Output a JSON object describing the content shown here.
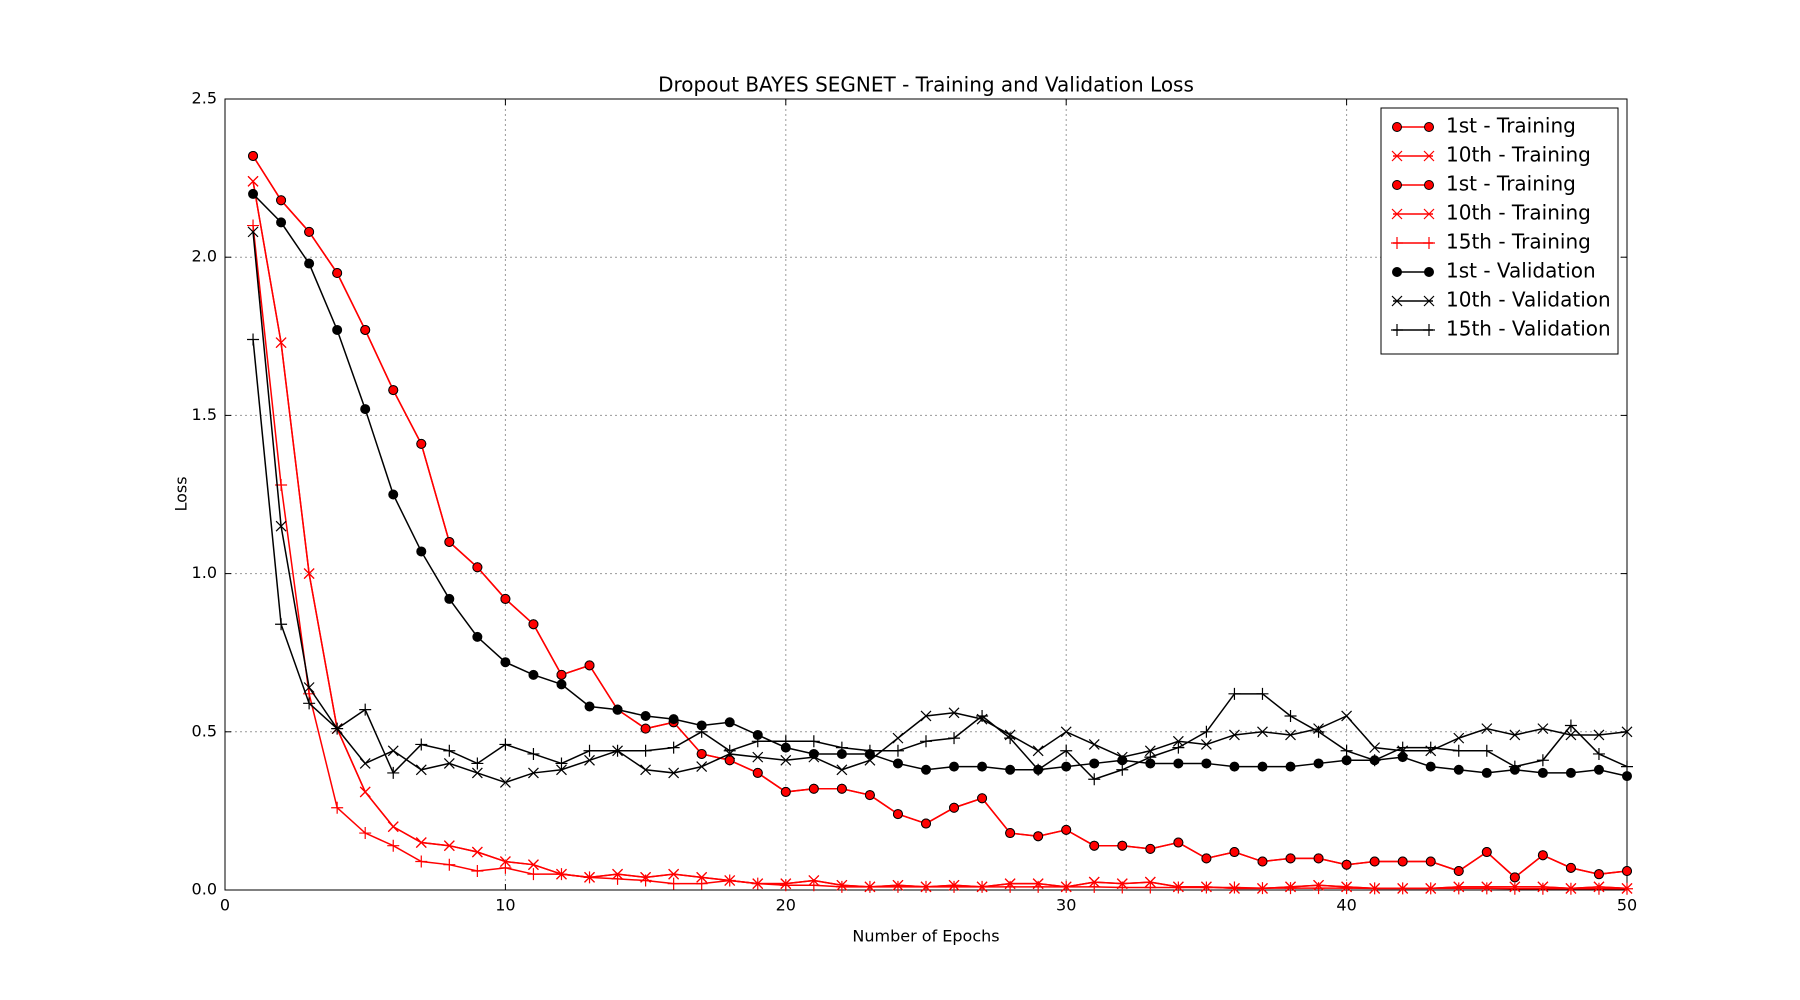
{
  "chart_data": {
    "type": "line",
    "title": "Dropout BAYES SEGNET - Training and Validation Loss",
    "x_label": "Number of Epochs",
    "y_label": "Loss",
    "x": [
      1,
      2,
      3,
      4,
      5,
      6,
      7,
      8,
      9,
      10,
      11,
      12,
      13,
      14,
      15,
      16,
      17,
      18,
      19,
      20,
      21,
      22,
      23,
      24,
      25,
      26,
      27,
      28,
      29,
      30,
      31,
      32,
      33,
      34,
      35,
      36,
      37,
      38,
      39,
      40,
      41,
      42,
      43,
      44,
      45,
      46,
      47,
      48,
      49,
      50
    ],
    "xlim": [
      0,
      50
    ],
    "xticks": [
      0,
      10,
      20,
      30,
      40,
      50
    ],
    "ylim": [
      0,
      2.5
    ],
    "yticks": [
      {
        "value": 0,
        "label": "0.0"
      },
      {
        "value": 0.5,
        "label": "0.5"
      },
      {
        "value": 1,
        "label": "1.0"
      },
      {
        "value": 1.5,
        "label": "1.5"
      },
      {
        "value": 2,
        "label": "2.0"
      },
      {
        "value": 2.5,
        "label": "2.5"
      }
    ],
    "grid": true,
    "legend": "upper right",
    "series": [
      {
        "name": "1st - Training",
        "color": "#ff0000",
        "marker": "circle",
        "values": [
          2.32,
          2.18,
          2.08,
          1.95,
          1.77,
          1.58,
          1.41,
          1.1,
          1.02,
          0.92,
          0.84,
          0.68,
          0.71,
          0.57,
          0.51,
          0.53,
          0.43,
          0.41,
          0.37,
          0.31,
          0.32,
          0.32,
          0.3,
          0.24,
          0.21,
          0.26,
          0.29,
          0.18,
          0.17,
          0.19,
          0.14,
          0.14,
          0.13,
          0.15,
          0.1,
          0.12,
          0.09,
          0.1,
          0.1,
          0.08,
          0.09,
          0.09,
          0.09,
          0.06,
          0.12,
          0.04,
          0.11,
          0.07,
          0.05,
          0.06
        ]
      },
      {
        "name": "10th - Training",
        "color": "#ff0000",
        "marker": "x",
        "values": [
          2.24,
          1.73,
          1.0,
          0.51,
          0.31,
          0.2,
          0.15,
          0.14,
          0.12,
          0.09,
          0.08,
          0.05,
          0.04,
          0.05,
          0.04,
          0.05,
          0.04,
          0.03,
          0.02,
          0.02,
          0.03,
          0.015,
          0.01,
          0.015,
          0.01,
          0.015,
          0.01,
          0.02,
          0.02,
          0.01,
          0.025,
          0.02,
          0.025,
          0.01,
          0.01,
          0.005,
          0.005,
          0.01,
          0.015,
          0.01,
          0.005,
          0.005,
          0.005,
          0.01,
          0.01,
          0.01,
          0.01,
          0.005,
          0.01,
          0.005
        ]
      },
      {
        "name": "1st - Training",
        "color": "#ff0000",
        "marker": "circle",
        "values": [
          2.32,
          2.18,
          2.08,
          1.95,
          1.77,
          1.58,
          1.41,
          1.1,
          1.02,
          0.92,
          0.84,
          0.68,
          0.71,
          0.57,
          0.51,
          0.53,
          0.43,
          0.41,
          0.37,
          0.31,
          0.32,
          0.32,
          0.3,
          0.24,
          0.21,
          0.26,
          0.29,
          0.18,
          0.17,
          0.19,
          0.14,
          0.14,
          0.13,
          0.15,
          0.1,
          0.12,
          0.09,
          0.1,
          0.1,
          0.08,
          0.09,
          0.09,
          0.09,
          0.06,
          0.12,
          0.04,
          0.11,
          0.07,
          0.05,
          0.06
        ]
      },
      {
        "name": "10th - Training",
        "color": "#ff0000",
        "marker": "x",
        "values": [
          2.24,
          1.73,
          1.0,
          0.51,
          0.31,
          0.2,
          0.15,
          0.14,
          0.12,
          0.09,
          0.08,
          0.05,
          0.04,
          0.05,
          0.04,
          0.05,
          0.04,
          0.03,
          0.02,
          0.02,
          0.03,
          0.015,
          0.01,
          0.015,
          0.01,
          0.015,
          0.01,
          0.02,
          0.02,
          0.01,
          0.025,
          0.02,
          0.025,
          0.01,
          0.01,
          0.005,
          0.005,
          0.01,
          0.015,
          0.01,
          0.005,
          0.005,
          0.005,
          0.01,
          0.01,
          0.01,
          0.01,
          0.005,
          0.01,
          0.005
        ]
      },
      {
        "name": "15th - Training",
        "color": "#ff0000",
        "marker": "plus",
        "values": [
          2.1,
          1.28,
          0.62,
          0.26,
          0.18,
          0.14,
          0.09,
          0.08,
          0.06,
          0.07,
          0.05,
          0.05,
          0.04,
          0.035,
          0.03,
          0.02,
          0.02,
          0.03,
          0.02,
          0.015,
          0.015,
          0.01,
          0.01,
          0.01,
          0.01,
          0.01,
          0.01,
          0.01,
          0.01,
          0.01,
          0.01,
          0.008,
          0.008,
          0.008,
          0.008,
          0.008,
          0.006,
          0.006,
          0.006,
          0.006,
          0.005,
          0.005,
          0.005,
          0.005,
          0.005,
          0.004,
          0.004,
          0.004,
          0.004,
          0.004
        ]
      },
      {
        "name": "1st - Validation",
        "color": "#000000",
        "marker": "circle",
        "values": [
          2.2,
          2.11,
          1.98,
          1.77,
          1.52,
          1.25,
          1.07,
          0.92,
          0.8,
          0.72,
          0.68,
          0.65,
          0.58,
          0.57,
          0.55,
          0.54,
          0.52,
          0.53,
          0.49,
          0.45,
          0.43,
          0.43,
          0.43,
          0.4,
          0.38,
          0.39,
          0.39,
          0.38,
          0.38,
          0.39,
          0.4,
          0.41,
          0.4,
          0.4,
          0.4,
          0.39,
          0.39,
          0.39,
          0.4,
          0.41,
          0.41,
          0.42,
          0.39,
          0.38,
          0.37,
          0.38,
          0.37,
          0.37,
          0.38,
          0.36
        ]
      },
      {
        "name": "10th - Validation",
        "color": "#000000",
        "marker": "x",
        "values": [
          2.08,
          1.15,
          0.64,
          0.51,
          0.4,
          0.44,
          0.38,
          0.4,
          0.37,
          0.34,
          0.37,
          0.38,
          0.41,
          0.44,
          0.38,
          0.37,
          0.39,
          0.43,
          0.42,
          0.41,
          0.42,
          0.38,
          0.41,
          0.48,
          0.55,
          0.56,
          0.54,
          0.49,
          0.44,
          0.5,
          0.46,
          0.42,
          0.44,
          0.47,
          0.46,
          0.49,
          0.5,
          0.49,
          0.51,
          0.55,
          0.45,
          0.44,
          0.44,
          0.48,
          0.51,
          0.49,
          0.51,
          0.49,
          0.49,
          0.5
        ]
      },
      {
        "name": "15th - Validation",
        "color": "#000000",
        "marker": "plus",
        "values": [
          1.74,
          0.84,
          0.59,
          0.51,
          0.57,
          0.37,
          0.46,
          0.44,
          0.4,
          0.46,
          0.43,
          0.4,
          0.44,
          0.44,
          0.44,
          0.45,
          0.5,
          0.44,
          0.47,
          0.47,
          0.47,
          0.45,
          0.44,
          0.44,
          0.47,
          0.48,
          0.55,
          0.48,
          0.38,
          0.44,
          0.35,
          0.38,
          0.42,
          0.45,
          0.5,
          0.62,
          0.62,
          0.55,
          0.5,
          0.44,
          0.41,
          0.45,
          0.45,
          0.44,
          0.44,
          0.39,
          0.41,
          0.52,
          0.43,
          0.39
        ]
      }
    ]
  }
}
